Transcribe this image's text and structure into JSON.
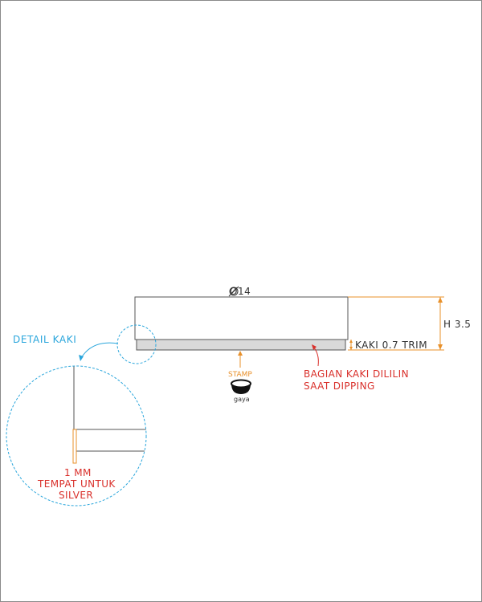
{
  "diameter_label": "Ø14",
  "height_label": "H 3.5",
  "foot_label": "KAKI 0.7 TRIM",
  "detail_label": "DETAIL KAKI",
  "stamp": {
    "label": "STAMP",
    "brand": "gaya"
  },
  "wax_note": {
    "line1": "BAGIAN KAKI DILILIN",
    "line2": "SAAT DIPPING"
  },
  "detail_note": {
    "line1": "1 MM",
    "line2": "TEMPAT UNTUK",
    "line3": "SILVER"
  },
  "colors": {
    "outline": "#555555",
    "dimension_lines": "#e8902a",
    "detail_callout": "#2aa6dc",
    "note_text": "#d9302b",
    "foot_fill": "#d9d9d9"
  }
}
